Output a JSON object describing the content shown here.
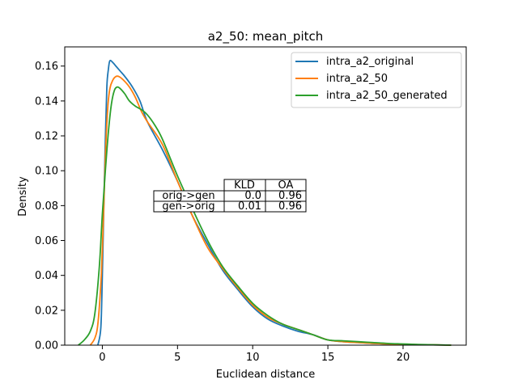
{
  "chart_data": {
    "type": "line",
    "title": "a2_50: mean_pitch",
    "xlabel": "Euclidean distance",
    "ylabel": "Density",
    "xlim": [
      -2.5,
      24.2
    ],
    "ylim": [
      0,
      0.171
    ],
    "xticks": [
      0,
      5,
      10,
      15,
      20
    ],
    "xtick_labels": [
      "0",
      "5",
      "10",
      "15",
      "20"
    ],
    "yticks": [
      0.0,
      0.02,
      0.04,
      0.06,
      0.08,
      0.1,
      0.12,
      0.14,
      0.16
    ],
    "ytick_labels": [
      "0.00",
      "0.02",
      "0.04",
      "0.06",
      "0.08",
      "0.10",
      "0.12",
      "0.14",
      "0.16"
    ],
    "grid": false,
    "legend_position": "top-right",
    "series": [
      {
        "name": "intra_a2_original",
        "color": "#1f77b4",
        "x": [
          -0.3,
          -0.1,
          0.0,
          0.1,
          0.2,
          0.3,
          0.4,
          0.5,
          0.7,
          0.9,
          1.2,
          1.5,
          2.0,
          2.5,
          3.0,
          4.0,
          5.0,
          6.0,
          7.0,
          8.0,
          9.0,
          10.0,
          11.0,
          12.0,
          13.0,
          14.0,
          15.0,
          16.0,
          17.0,
          18.0,
          19.0,
          20.0,
          21.0,
          22.0,
          23.2
        ],
        "y": [
          0.0,
          0.01,
          0.04,
          0.08,
          0.118,
          0.148,
          0.158,
          0.163,
          0.162,
          0.16,
          0.157,
          0.154,
          0.148,
          0.14,
          0.128,
          0.112,
          0.094,
          0.074,
          0.058,
          0.043,
          0.032,
          0.022,
          0.015,
          0.011,
          0.008,
          0.006,
          0.003,
          0.002,
          0.0015,
          0.001,
          0.0007,
          0.0005,
          0.0003,
          0.0002,
          0.0
        ]
      },
      {
        "name": "intra_a2_50",
        "color": "#ff7f0e",
        "x": [
          -0.8,
          -0.5,
          -0.3,
          -0.1,
          0.0,
          0.1,
          0.2,
          0.35,
          0.5,
          0.7,
          0.9,
          1.1,
          1.4,
          1.8,
          2.2,
          2.6,
          3.0,
          4.0,
          5.0,
          6.0,
          7.0,
          8.0,
          9.0,
          10.0,
          11.0,
          12.0,
          13.0,
          14.0,
          15.0,
          16.0,
          17.0,
          18.0,
          19.0,
          20.0,
          21.0,
          22.0,
          23.2
        ],
        "y": [
          0.0,
          0.004,
          0.012,
          0.035,
          0.055,
          0.08,
          0.108,
          0.135,
          0.147,
          0.152,
          0.154,
          0.154,
          0.152,
          0.148,
          0.142,
          0.134,
          0.128,
          0.115,
          0.094,
          0.074,
          0.056,
          0.044,
          0.033,
          0.023,
          0.016,
          0.012,
          0.009,
          0.006,
          0.003,
          0.002,
          0.0015,
          0.001,
          0.0007,
          0.0005,
          0.0003,
          0.0002,
          0.0
        ]
      },
      {
        "name": "intra_a2_50_generated",
        "color": "#2ca02c",
        "x": [
          -1.6,
          -1.2,
          -0.8,
          -0.5,
          -0.2,
          0.0,
          0.2,
          0.4,
          0.6,
          0.8,
          1.0,
          1.2,
          1.5,
          1.8,
          2.2,
          2.6,
          3.0,
          3.5,
          4.0,
          5.0,
          6.0,
          7.0,
          8.0,
          9.0,
          10.0,
          11.0,
          12.0,
          13.0,
          14.0,
          15.0,
          16.0,
          17.0,
          18.0,
          19.0,
          20.0,
          21.0,
          22.0,
          23.2
        ],
        "y": [
          0.0,
          0.003,
          0.008,
          0.018,
          0.045,
          0.075,
          0.1,
          0.122,
          0.138,
          0.146,
          0.148,
          0.147,
          0.144,
          0.14,
          0.137,
          0.135,
          0.132,
          0.126,
          0.118,
          0.097,
          0.078,
          0.06,
          0.045,
          0.034,
          0.024,
          0.017,
          0.012,
          0.009,
          0.006,
          0.003,
          0.0025,
          0.002,
          0.0015,
          0.001,
          0.0007,
          0.0004,
          0.0002,
          0.0
        ]
      }
    ],
    "table": {
      "columns": [
        "KLD",
        "OA"
      ],
      "rows": [
        {
          "label": "orig->gen",
          "values": [
            "0.0",
            "0.96"
          ]
        },
        {
          "label": "gen->orig",
          "values": [
            "0.01",
            "0.96"
          ]
        }
      ]
    }
  }
}
